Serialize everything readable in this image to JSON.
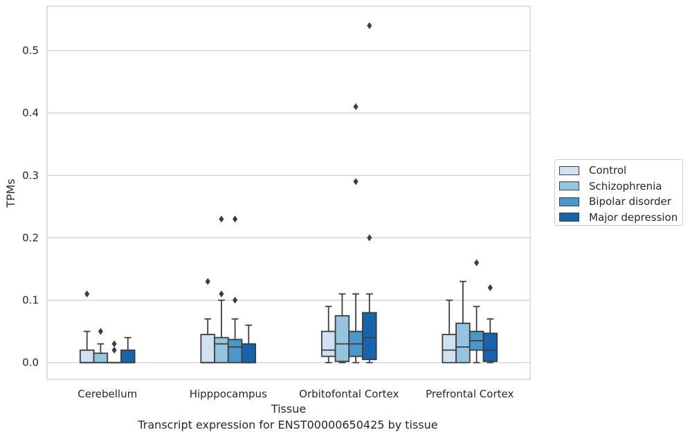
{
  "caption": "Transcript expression for ENST00000650425 by tissue",
  "chart_data": {
    "type": "box",
    "xlabel": "Tissue",
    "ylabel": "TPMs",
    "ylim": [
      -0.027,
      0.571
    ],
    "yticks": [
      0.0,
      0.1,
      0.2,
      0.3,
      0.4,
      0.5
    ],
    "ytick_labels": [
      "0.0",
      "0.1",
      "0.2",
      "0.3",
      "0.4",
      "0.5"
    ],
    "grid": "horizontal",
    "legend_position": "outside right",
    "categories": [
      "Cerebellum",
      "Hipppocampus",
      "Orbitofontal Cortex",
      "Prefrontal Cortex"
    ],
    "series": [
      {
        "name": "Control",
        "color": "#d0e1f2",
        "boxes": [
          {
            "min": 0.0,
            "q1": 0.0,
            "median": 0.0,
            "q3": 0.02,
            "max": 0.05,
            "outliers": [
              0.11
            ]
          },
          {
            "min": 0.0,
            "q1": 0.0,
            "median": 0.0,
            "q3": 0.045,
            "max": 0.07,
            "outliers": [
              0.13
            ]
          },
          {
            "min": 0.0,
            "q1": 0.01,
            "median": 0.02,
            "q3": 0.05,
            "max": 0.09,
            "outliers": []
          },
          {
            "min": 0.0,
            "q1": 0.0,
            "median": 0.02,
            "q3": 0.045,
            "max": 0.1,
            "outliers": []
          }
        ]
      },
      {
        "name": "Schizophrenia",
        "color": "#94c4df",
        "boxes": [
          {
            "min": 0.0,
            "q1": 0.0,
            "median": 0.0,
            "q3": 0.015,
            "max": 0.03,
            "outliers": [
              0.05
            ]
          },
          {
            "min": 0.0,
            "q1": 0.0,
            "median": 0.03,
            "q3": 0.04,
            "max": 0.1,
            "outliers": [
              0.11,
              0.23
            ]
          },
          {
            "min": 0.0,
            "q1": 0.002,
            "median": 0.03,
            "q3": 0.075,
            "max": 0.11,
            "outliers": []
          },
          {
            "min": 0.0,
            "q1": 0.0,
            "median": 0.025,
            "q3": 0.063,
            "max": 0.13,
            "outliers": []
          }
        ]
      },
      {
        "name": "Bipolar disorder",
        "color": "#4a98c9",
        "boxes": [
          {
            "min": 0.0,
            "q1": 0.0,
            "median": 0.0,
            "q3": 0.0,
            "max": 0.0,
            "outliers": [
              0.02,
              0.03
            ]
          },
          {
            "min": 0.0,
            "q1": 0.0,
            "median": 0.025,
            "q3": 0.037,
            "max": 0.07,
            "outliers": [
              0.1,
              0.23
            ]
          },
          {
            "min": 0.0,
            "q1": 0.01,
            "median": 0.03,
            "q3": 0.05,
            "max": 0.11,
            "outliers": [
              0.29,
              0.41
            ]
          },
          {
            "min": 0.0,
            "q1": 0.02,
            "median": 0.035,
            "q3": 0.05,
            "max": 0.09,
            "outliers": [
              0.16
            ]
          }
        ]
      },
      {
        "name": "Major depression",
        "color": "#1764ab",
        "boxes": [
          {
            "min": 0.0,
            "q1": 0.0,
            "median": 0.0,
            "q3": 0.02,
            "max": 0.04,
            "outliers": []
          },
          {
            "min": 0.0,
            "q1": 0.0,
            "median": 0.0,
            "q3": 0.03,
            "max": 0.06,
            "outliers": []
          },
          {
            "min": 0.0,
            "q1": 0.005,
            "median": 0.04,
            "q3": 0.08,
            "max": 0.11,
            "outliers": [
              0.2,
              0.54
            ]
          },
          {
            "min": 0.0,
            "q1": 0.002,
            "median": 0.02,
            "q3": 0.047,
            "max": 0.07,
            "outliers": [
              0.12
            ]
          }
        ]
      }
    ]
  }
}
